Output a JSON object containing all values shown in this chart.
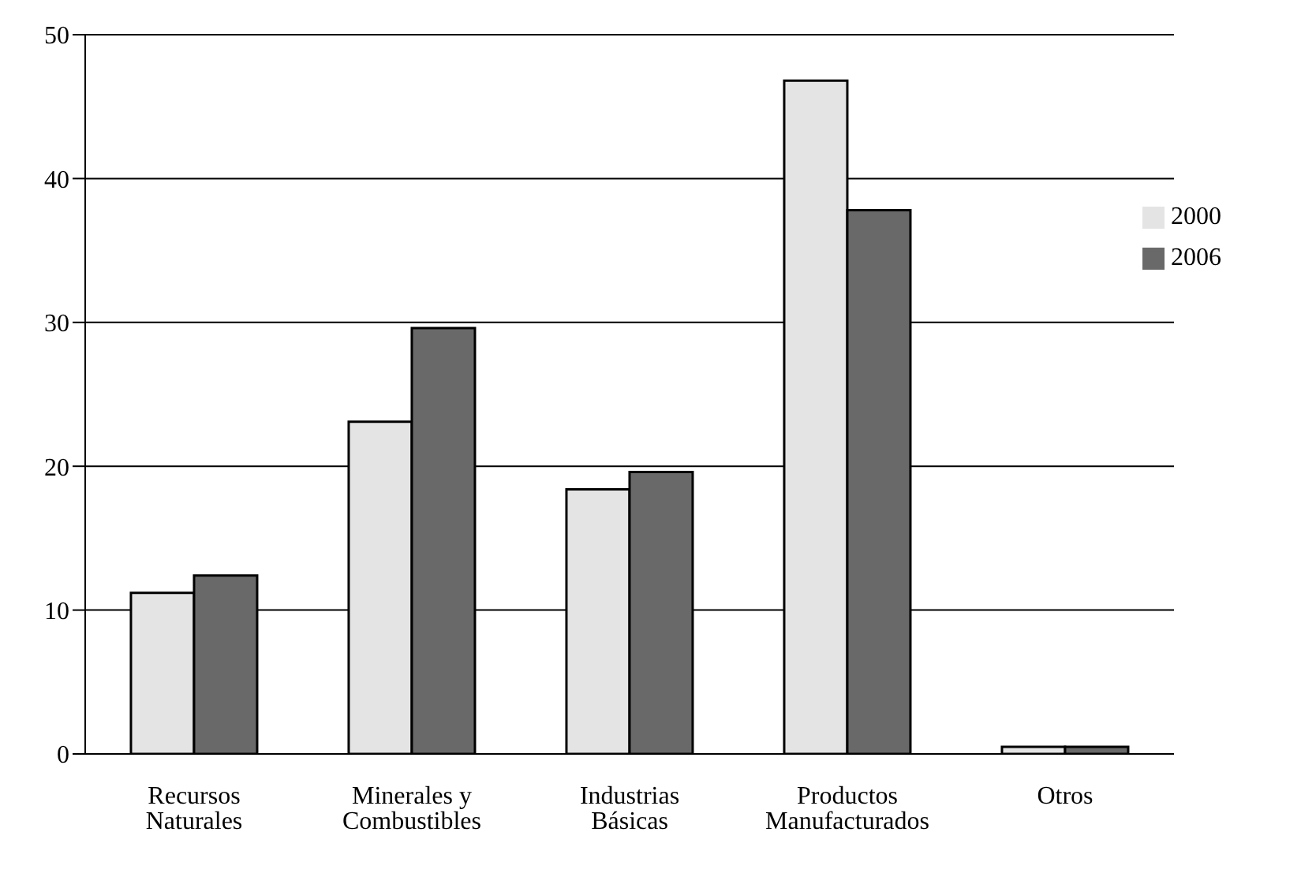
{
  "chart_data": {
    "type": "bar",
    "categories": [
      "Recursos Naturales",
      "Minerales y Combustibles",
      "Industrias Básicas",
      "Productos Manufacturados",
      "Otros"
    ],
    "series": [
      {
        "name": "2000",
        "color": "#e3e4e3",
        "values": [
          11.2,
          23.1,
          18.4,
          46.8,
          0.5
        ]
      },
      {
        "name": "2006",
        "color": "#696969",
        "values": [
          12.4,
          29.6,
          19.6,
          37.8,
          0.5
        ]
      }
    ],
    "ylim": [
      0,
      50
    ],
    "yticks": [
      0,
      10,
      20,
      30,
      40,
      50
    ],
    "grid": "y",
    "legend": "top right"
  }
}
